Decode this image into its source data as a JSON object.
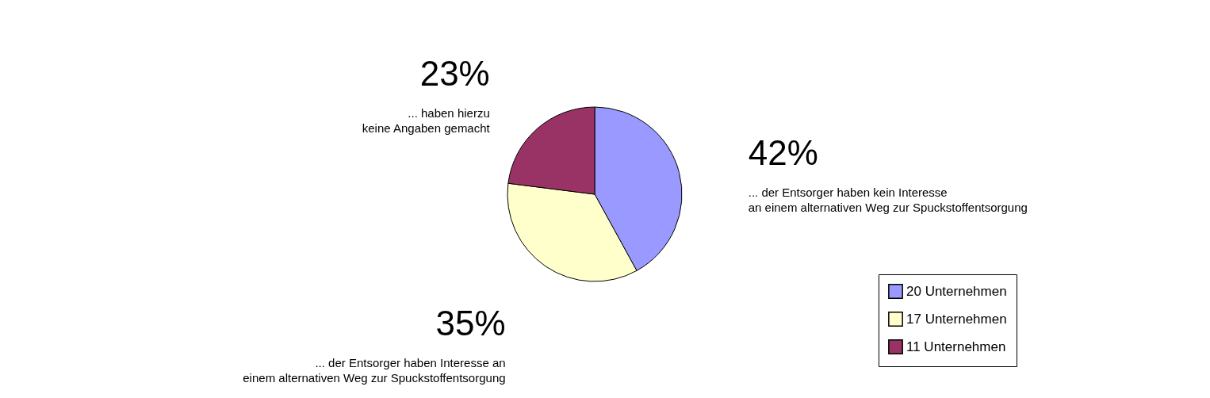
{
  "chart_data": {
    "type": "pie",
    "categories": [
      "20 Unternehmen",
      "17 Unternehmen",
      "11 Unternehmen"
    ],
    "values": [
      42,
      35,
      23
    ],
    "colors": [
      "#9999ff",
      "#ffffcc",
      "#993366"
    ],
    "value_labels": [
      "42%",
      "35%",
      "23%"
    ],
    "annotations": [
      "... der Entsorger haben kein Interesse an einem alternativen Weg zur Spuckstoffentsorgung",
      "... der Entsorger haben Interesse an einem alternativen Weg zur Spuckstoffentsorgung",
      "... haben hierzu keine Angaben gemacht"
    ],
    "legend": "bottom right"
  }
}
